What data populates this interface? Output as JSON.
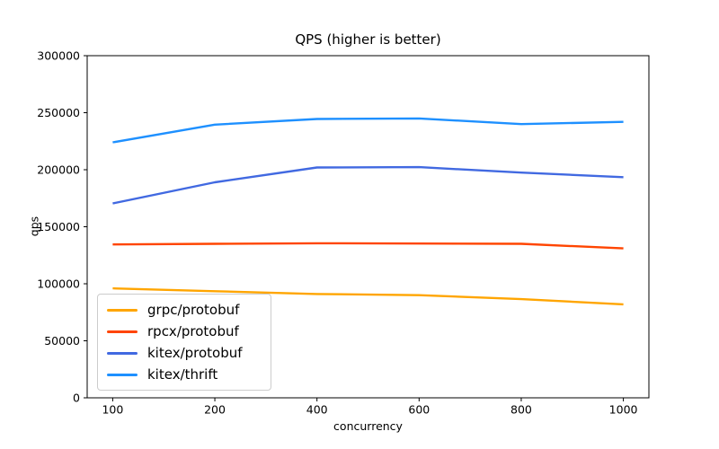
{
  "chart_data": {
    "type": "line",
    "title": "QPS (higher is better)",
    "xlabel": "concurrency",
    "ylabel": "qps",
    "categories": [
      100,
      200,
      400,
      600,
      800,
      1000
    ],
    "series": [
      {
        "name": "grpc/protobuf",
        "color": "#FFA500",
        "values": [
          96000,
          93500,
          91000,
          90000,
          86500,
          82000
        ]
      },
      {
        "name": "rpcx/protobuf",
        "color": "#FF4500",
        "values": [
          134500,
          135000,
          135500,
          135300,
          135000,
          131000
        ]
      },
      {
        "name": "kitex/protobuf",
        "color": "#4169E1",
        "values": [
          170500,
          189000,
          202000,
          202300,
          197500,
          193500
        ]
      },
      {
        "name": "kitex/thrift",
        "color": "#1E90FF",
        "values": [
          224000,
          239500,
          244500,
          245000,
          240000,
          242000
        ]
      }
    ],
    "ylim": [
      0,
      300000
    ],
    "yticks": [
      0,
      50000,
      100000,
      150000,
      200000,
      250000,
      300000
    ],
    "grid": false,
    "legend_position": "lower-left",
    "axis_color": "#000000"
  }
}
